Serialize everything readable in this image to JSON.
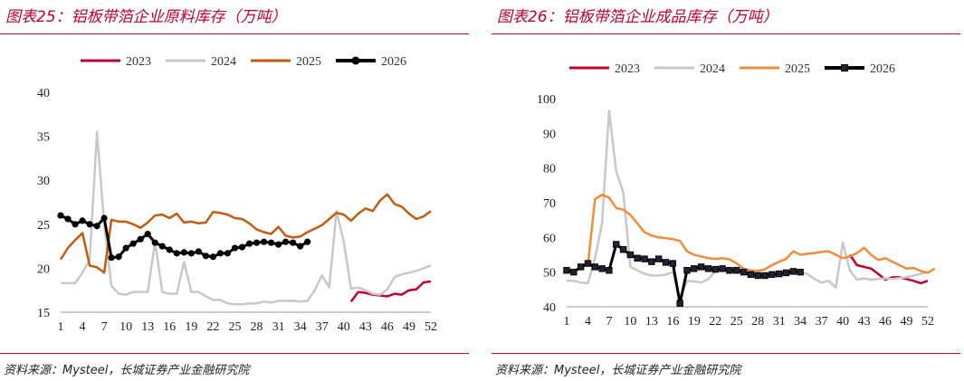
{
  "left": {
    "title": "图表25：铝板带箔企业原料库存（万吨）",
    "source": "资料来源：Mysteel，长城证券产业金融研究院"
  },
  "right": {
    "title": "图表26：铝板带箔企业成品库存（万吨）",
    "source": "资料来源：Mysteel，长城证券产业金融研究院"
  },
  "chart_data": [
    {
      "type": "line",
      "x_ticks": [
        "1",
        "4",
        "7",
        "10",
        "13",
        "16",
        "19",
        "22",
        "25",
        "28",
        "31",
        "34",
        "37",
        "40",
        "43",
        "46",
        "49",
        "52"
      ],
      "ylim": [
        15,
        40
      ],
      "y_ticks": [
        "15",
        "20",
        "25",
        "30",
        "35",
        "40"
      ],
      "legend_position": "top",
      "grid": false,
      "series": [
        {
          "name": "2023",
          "color": "#c00032",
          "marker": false,
          "start_week": 41,
          "values": [
            16.2,
            17.3,
            17.2,
            17.0,
            16.9,
            16.8,
            17.1,
            17.0,
            17.5,
            17.6,
            18.4,
            18.5
          ]
        },
        {
          "name": "2024",
          "color": "#c8c8c8",
          "marker": false,
          "start_week": 1,
          "values": [
            18.3,
            18.3,
            18.3,
            19.5,
            21.0,
            35.5,
            25.0,
            18.0,
            17.1,
            17.0,
            17.3,
            17.3,
            17.3,
            23.0,
            17.3,
            17.1,
            17.1,
            20.7,
            17.3,
            17.3,
            16.8,
            16.4,
            16.4,
            16.0,
            15.9,
            15.9,
            16.0,
            16.0,
            16.2,
            16.1,
            16.3,
            16.3,
            16.3,
            16.2,
            16.3,
            17.5,
            19.2,
            17.8,
            26.5,
            23.0,
            17.7,
            17.8,
            17.5,
            17.1,
            17.0,
            17.6,
            19.0,
            19.3,
            19.5,
            19.7,
            20.0,
            20.3
          ]
        },
        {
          "name": "2025",
          "color": "#c55a11",
          "marker": false,
          "start_week": 1,
          "values": [
            21.0,
            22.3,
            23.2,
            24.0,
            20.3,
            20.1,
            19.5,
            25.5,
            25.3,
            25.3,
            25.0,
            24.6,
            25.2,
            26.0,
            26.1,
            25.7,
            26.2,
            25.2,
            25.3,
            25.1,
            25.2,
            26.4,
            26.3,
            26.1,
            25.7,
            25.6,
            25.1,
            24.4,
            24.1,
            23.9,
            24.7,
            23.7,
            23.5,
            23.6,
            24.1,
            24.5,
            24.9,
            25.6,
            26.3,
            26.1,
            25.4,
            26.2,
            26.8,
            26.5,
            27.7,
            28.4,
            27.3,
            27.0,
            26.2,
            25.6,
            25.9,
            26.5
          ]
        },
        {
          "name": "2026",
          "color": "#000000",
          "marker": true,
          "start_week": 1,
          "values": [
            26.0,
            25.6,
            25.0,
            25.4,
            25.0,
            24.8,
            25.7,
            21.2,
            21.3,
            22.3,
            22.8,
            23.3,
            23.9,
            22.9,
            22.5,
            22.1,
            21.7,
            21.8,
            21.7,
            21.9,
            21.4,
            21.3,
            21.7,
            21.7,
            22.3,
            22.4,
            22.8,
            22.9,
            23.0,
            22.9,
            22.7,
            23.0,
            22.9,
            22.5,
            23.0
          ]
        }
      ]
    },
    {
      "type": "line",
      "x_ticks": [
        "1",
        "4",
        "7",
        "10",
        "13",
        "16",
        "19",
        "22",
        "25",
        "28",
        "31",
        "34",
        "37",
        "40",
        "43",
        "46",
        "49",
        "52"
      ],
      "ylim": [
        40,
        100
      ],
      "y_ticks": [
        "40",
        "50",
        "60",
        "70",
        "80",
        "90",
        "100"
      ],
      "legend_position": "top",
      "grid": false,
      "series": [
        {
          "name": "2023",
          "color": "#c00032",
          "marker": false,
          "start_week": 41,
          "values": [
            55.0,
            52.0,
            51.5,
            51.0,
            49.5,
            47.8,
            48.5,
            48.5,
            48.0,
            47.5,
            46.8,
            47.5
          ]
        },
        {
          "name": "2024",
          "color": "#c8c8c8",
          "marker": false,
          "start_week": 1,
          "values": [
            47.5,
            47.5,
            47.0,
            46.8,
            54.0,
            64.0,
            96.5,
            79.0,
            73.0,
            51.5,
            50.5,
            49.5,
            49.0,
            49.0,
            49.3,
            50.0,
            42.5,
            47.5,
            47.3,
            47.0,
            48.0,
            50.2,
            50.8,
            50.5,
            50.3,
            50.0,
            49.8,
            49.7,
            49.5,
            49.5,
            49.6,
            49.7,
            49.8,
            50.0,
            49.5,
            48.0,
            47.0,
            47.5,
            45.5,
            58.5,
            50.5,
            47.8,
            48.2,
            47.8,
            48.0,
            48.2,
            48.0,
            48.3,
            48.5,
            49.0,
            49.5,
            50.0
          ]
        },
        {
          "name": "2025",
          "color": "#f08c3a",
          "marker": false,
          "start_week": 4,
          "values": [
            52.0,
            71.0,
            72.3,
            71.5,
            68.5,
            68.0,
            66.5,
            64.0,
            61.5,
            60.5,
            60.0,
            59.8,
            59.5,
            59.0,
            56.0,
            55.0,
            54.5,
            54.0,
            53.8,
            54.0,
            53.7,
            52.5,
            51.0,
            50.5,
            50.3,
            50.8,
            52.0,
            53.0,
            53.8,
            56.0,
            55.0,
            55.3,
            55.5,
            55.8,
            56.0,
            55.0,
            54.0,
            54.5,
            55.5,
            57.0,
            55.0,
            53.5,
            54.0,
            53.0,
            52.0,
            51.0,
            51.2,
            50.3,
            49.8,
            51.0
          ]
        },
        {
          "name": "2026",
          "color": "#000000",
          "marker": true,
          "start_week": 1,
          "values": [
            50.5,
            50.0,
            51.5,
            52.5,
            51.5,
            51.0,
            50.5,
            58.0,
            56.5,
            55.0,
            54.0,
            53.8,
            53.0,
            53.8,
            52.8,
            52.5,
            41.0,
            50.5,
            51.0,
            51.5,
            51.0,
            50.8,
            51.0,
            50.5,
            50.5,
            50.0,
            49.3,
            49.0,
            49.0,
            49.3,
            49.5,
            49.8,
            50.2,
            50.0
          ]
        }
      ]
    }
  ]
}
